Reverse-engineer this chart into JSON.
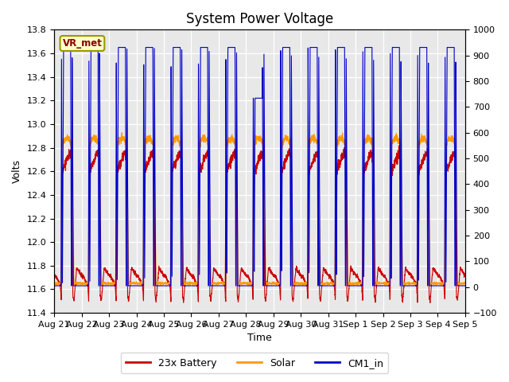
{
  "title": "System Power Voltage",
  "xlabel": "Time",
  "ylabel": "Volts",
  "left_ylim": [
    11.4,
    13.8
  ],
  "right_ylim": [
    -100,
    1000
  ],
  "left_yticks": [
    11.4,
    11.6,
    11.8,
    12.0,
    12.2,
    12.4,
    12.6,
    12.8,
    13.0,
    13.2,
    13.4,
    13.6,
    13.8
  ],
  "right_yticks": [
    -100,
    0,
    100,
    200,
    300,
    400,
    500,
    600,
    700,
    800,
    900,
    1000
  ],
  "date_labels": [
    "Aug 21",
    "Aug 22",
    "Aug 23",
    "Aug 24",
    "Aug 25",
    "Aug 26",
    "Aug 27",
    "Aug 28",
    "Aug 29",
    "Aug 30",
    "Aug 31",
    "Sep 1",
    "Sep 2",
    "Sep 3",
    "Sep 4",
    "Sep 5"
  ],
  "vr_met_label": "VR_met",
  "legend_entries": [
    "23x Battery",
    "Solar",
    "CM1_in"
  ],
  "line_colors": [
    "#cc0000",
    "#ff9900",
    "#0000cc"
  ],
  "bg_color": "#e8e8e8",
  "title_fontsize": 12,
  "axis_fontsize": 9,
  "tick_fontsize": 8
}
